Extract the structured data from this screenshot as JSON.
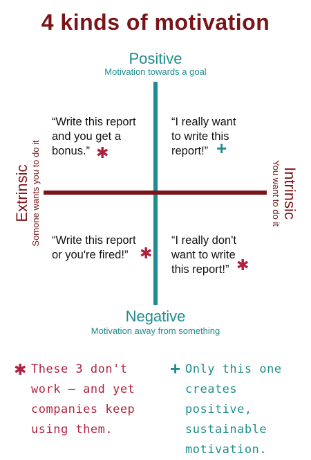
{
  "title": "4 kinds of motivation",
  "axes": {
    "top_label": "Positive",
    "top_sub": "Motivation towards a goal",
    "bottom_label": "Negative",
    "bottom_sub": "Motivation away from something",
    "left_label": "Extrinsic",
    "left_sub": "Somone wants you to do it",
    "right_label": "Intrinsic",
    "right_sub": "You want to do it"
  },
  "quadrants": {
    "top_left": "“Write this report\nand you get a\nbonus.”",
    "top_right": "“I really want\nto write this\nreport!”",
    "bottom_left": "“Write this report\nor you're fired!”",
    "bottom_right": "“I really don't\nwant to write\nthis report!”"
  },
  "markers": {
    "asterisk_icon": "✱",
    "plus_icon": "+"
  },
  "notes": {
    "left": "These 3 don't\nwork – and yet\ncompanies keep\nusing them.",
    "right": "Only this one\ncreates positive,\nsustainable\nmotivation."
  },
  "colors": {
    "maroon": "#7a1418",
    "teal": "#1f8c8e",
    "crimson": "#b0213f"
  }
}
